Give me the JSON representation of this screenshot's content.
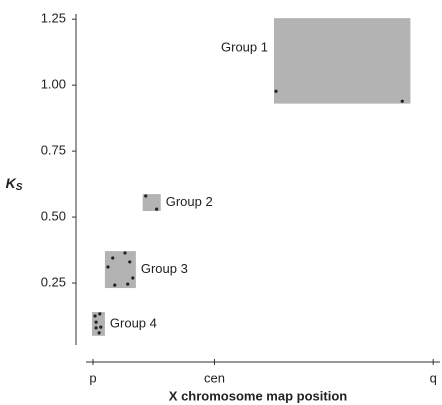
{
  "chart_data": {
    "type": "scatter",
    "xlabel": "X chromosome map position",
    "ylabel": "K",
    "ylabel_sub": "S",
    "xlim": [
      -0.05,
      1.02
    ],
    "ylim": [
      0,
      1.3
    ],
    "xticks": [
      {
        "value": 0,
        "label": "p"
      },
      {
        "value": 0.357,
        "label": "cen"
      },
      {
        "value": 1,
        "label": "q"
      }
    ],
    "yticks": [
      0.25,
      {
        "value": 0.5,
        "label": "0.50"
      },
      0.75,
      {
        "value": 1,
        "label": "1.00"
      },
      1.25
    ],
    "box_color": "#b3b3b3",
    "point_color": "#222222",
    "groups": [
      {
        "name": "Group 1",
        "x_range": [
          0.532,
          0.933
        ],
        "y_range": [
          0.93,
          1.254
        ],
        "x": [
          0.538,
          0.909
        ],
        "y": [
          0.977,
          0.939
        ]
      },
      {
        "name": "Group 2",
        "x_range": [
          0.146,
          0.199
        ],
        "y_range": [
          0.523,
          0.587
        ],
        "x": [
          0.155,
          0.187
        ],
        "y": [
          0.58,
          0.53
        ]
      },
      {
        "name": "Group 3",
        "x_range": [
          0.035,
          0.126
        ],
        "y_range": [
          0.231,
          0.371
        ],
        "x": [
          0.044,
          0.058,
          0.094,
          0.108,
          0.117,
          0.102,
          0.064
        ],
        "y": [
          0.311,
          0.345,
          0.364,
          0.33,
          0.269,
          0.246,
          0.242
        ]
      },
      {
        "name": "Group 4",
        "x_range": [
          -0.003,
          0.035
        ],
        "y_range": [
          0.05,
          0.14
        ],
        "x": [
          0.006,
          0.02,
          0.009,
          0.023,
          0.018,
          0.009
        ],
        "y": [
          0.125,
          0.133,
          0.102,
          0.083,
          0.061,
          0.08
        ]
      }
    ]
  }
}
